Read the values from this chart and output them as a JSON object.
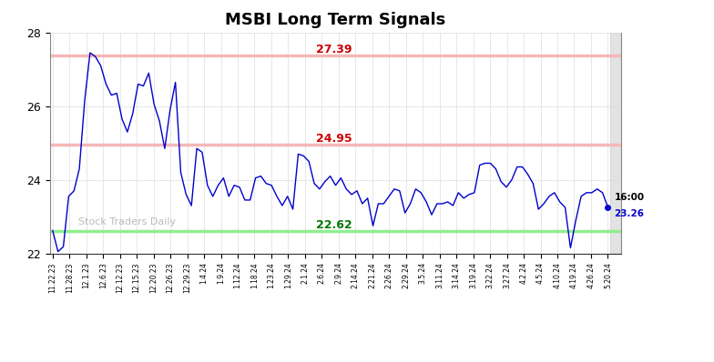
{
  "title": "MSBI Long Term Signals",
  "watermark": "Stock Traders Daily",
  "hline_upper": 27.39,
  "hline_middle": 24.95,
  "hline_lower": 22.62,
  "hline_upper_color": "#f5b8b8",
  "hline_middle_color": "#f5b8b8",
  "hline_lower_color": "#90ee90",
  "label_upper_color": "#cc0000",
  "label_middle_color": "#cc0000",
  "label_lower_color": "#007700",
  "last_price": 23.26,
  "last_time": "16:00",
  "last_time_color": "#000000",
  "last_price_color": "#0000cc",
  "line_color": "#0000cc",
  "ylim": [
    22.0,
    28.0
  ],
  "yticks": [
    22,
    24,
    26,
    28
  ],
  "x_labels": [
    "11.22.23",
    "11.28.23",
    "12.1.23",
    "12.6.23",
    "12.12.23",
    "12.15.23",
    "12.20.23",
    "12.26.23",
    "12.29.23",
    "1.4.24",
    "1.9.24",
    "1.12.24",
    "1.18.24",
    "1.23.24",
    "1.29.24",
    "2.1.24",
    "2.6.24",
    "2.9.24",
    "2.14.24",
    "2.21.24",
    "2.26.24",
    "2.29.24",
    "3.5.24",
    "3.11.24",
    "3.14.24",
    "3.19.24",
    "3.22.24",
    "3.27.24",
    "4.2.24",
    "4.5.24",
    "4.10.24",
    "4.19.24",
    "4.26.24",
    "5.20.24"
  ],
  "prices": [
    22.62,
    22.05,
    22.18,
    23.55,
    23.7,
    24.3,
    26.15,
    27.45,
    27.35,
    27.1,
    26.6,
    26.3,
    26.35,
    25.65,
    25.3,
    25.8,
    26.6,
    26.55,
    26.9,
    26.05,
    25.6,
    24.85,
    25.9,
    26.65,
    24.2,
    23.6,
    23.3,
    24.85,
    24.75,
    23.85,
    23.55,
    23.85,
    24.05,
    23.55,
    23.85,
    23.8,
    23.45,
    23.45,
    24.05,
    24.1,
    23.9,
    23.85,
    23.55,
    23.3,
    23.55,
    23.2,
    24.7,
    24.65,
    24.5,
    23.9,
    23.75,
    23.95,
    24.1,
    23.85,
    24.05,
    23.75,
    23.6,
    23.7,
    23.35,
    23.5,
    22.75,
    23.35,
    23.35,
    23.55,
    23.75,
    23.7,
    23.1,
    23.35,
    23.75,
    23.65,
    23.4,
    23.05,
    23.35,
    23.35,
    23.4,
    23.3,
    23.65,
    23.5,
    23.6,
    23.65,
    24.4,
    24.45,
    24.45,
    24.3,
    23.95,
    23.8,
    24.0,
    24.35,
    24.35,
    24.15,
    23.9,
    23.2,
    23.35,
    23.55,
    23.65,
    23.4,
    23.25,
    22.15,
    22.9,
    23.55,
    23.65,
    23.65,
    23.75,
    23.65,
    23.26
  ],
  "background_color": "#ffffff",
  "grid_color": "#dddddd",
  "right_panel_color": "#c8c8c8"
}
